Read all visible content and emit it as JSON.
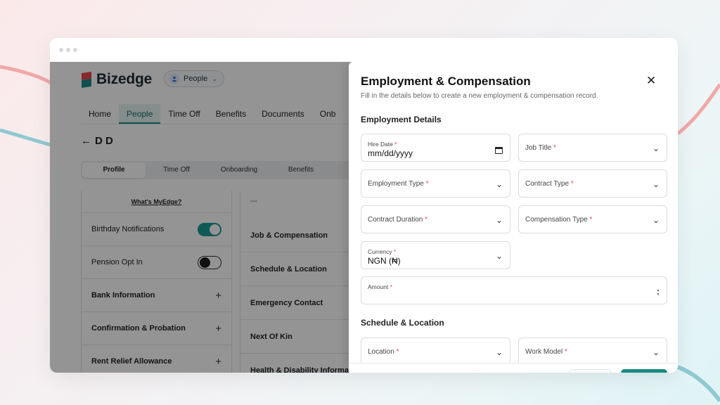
{
  "app": {
    "brand": "Bizedge",
    "module": "People",
    "nav": [
      "Home",
      "People",
      "Time Off",
      "Benefits",
      "Documents",
      "Onb"
    ],
    "active_nav": "People",
    "employee_name": "D D",
    "back_arrow": "←"
  },
  "profile_tabs": [
    "Profile",
    "Time Off",
    "Onboarding",
    "Benefits"
  ],
  "left_panel": {
    "whats_myedge": "What's MyEdge?",
    "birthday_notifications": "Birthday Notifications",
    "birthday_toggle": "on",
    "pension_opt_in": "Pension Opt In",
    "pension_toggle": "off",
    "bank_information": "Bank Information",
    "confirmation_probation": "Confirmation & Probation",
    "rent_relief": "Rent Relief Allowance",
    "plus": "+"
  },
  "middle_panel": {
    "placeholder": "---",
    "items": [
      "Job & Compensation",
      "Schedule & Location",
      "Emergency Contact",
      "Next Of Kin",
      "Health & Disability Informa"
    ]
  },
  "modal": {
    "title": "Employment & Compensation",
    "subtitle": "Fill in the details below to create a new employment & compensation record.",
    "close": "✕",
    "required_mark": "*",
    "section_employment": "Employment Details",
    "section_schedule": "Schedule & Location",
    "hire_date_label": "Hire Date",
    "hire_date_value": "mm/dd/yyyy",
    "job_title_label": "Job Title",
    "employment_type_label": "Employment Type",
    "contract_type_label": "Contract Type",
    "contract_duration_label": "Contract Duration",
    "compensation_type_label": "Compensation Type",
    "currency_label": "Currency",
    "currency_value": "NGN (₦)",
    "amount_label": "Amount",
    "location_label": "Location",
    "work_model_label": "Work Model"
  },
  "colors": {
    "accent": "#178a84",
    "required": "#e04b5a",
    "overlay": "rgba(0,0,0,0.42)"
  },
  "icons": {
    "close": "close-icon",
    "dropdown": "chevron-down-icon",
    "calendar": "calendar-icon",
    "back": "arrow-left-icon",
    "spinner": "number-spinner-icon"
  }
}
